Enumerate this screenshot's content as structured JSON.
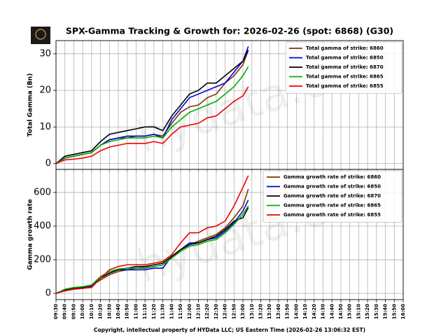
{
  "chart_data": [
    {
      "type": "line",
      "title": "SPX-Gamma Tracking & Growth for: 2026-02-26 (spot: 6868) (G30)",
      "title_color": "#0000cc",
      "ylabel": "Total Gamma (Bn)",
      "watermark": "hydata.co",
      "x": [
        "09:30",
        "09:40",
        "09:50",
        "10:00",
        "10:10",
        "10:20",
        "10:30",
        "10:40",
        "10:50",
        "11:00",
        "11:10",
        "11:20",
        "11:30",
        "11:40",
        "11:50",
        "12:00",
        "12:10",
        "12:20",
        "12:30",
        "12:40",
        "12:50",
        "13:00",
        "13:06"
      ],
      "xlim": [
        "09:30",
        "16:00"
      ],
      "ylim": [
        -1.6,
        33.6
      ],
      "yticks": [
        0,
        10,
        20,
        30
      ],
      "grid": true,
      "legend": "upper right",
      "series": [
        {
          "name": "Total gamma of strike: 6860",
          "color": "#7f3300",
          "values": [
            0,
            1.5,
            2,
            2.5,
            3,
            5,
            6.5,
            7,
            7,
            7.5,
            7.5,
            8,
            7.5,
            11,
            14,
            15.5,
            16,
            18,
            19,
            22,
            24,
            27,
            31
          ]
        },
        {
          "name": "Total gamma of strike: 6850",
          "color": "#0000dd",
          "values": [
            0,
            1.5,
            2,
            2.5,
            3,
            5,
            6.5,
            7,
            7.5,
            7.5,
            7.5,
            8,
            7,
            12,
            15,
            18,
            19,
            20,
            21,
            22,
            25,
            28,
            32
          ]
        },
        {
          "name": "Total gamma of strike: 6870",
          "color": "#000000",
          "values": [
            0,
            2,
            2.5,
            3,
            3.5,
            6,
            8,
            8.5,
            9,
            9.5,
            10,
            10,
            9,
            13,
            16,
            19,
            20,
            22,
            22,
            24,
            26,
            28,
            31
          ]
        },
        {
          "name": "Total gamma of strike: 6865",
          "color": "#00b000",
          "values": [
            0,
            1.5,
            2,
            2.5,
            3,
            5,
            6,
            6.5,
            7,
            7,
            7,
            7.5,
            7,
            10,
            12,
            14,
            15,
            16,
            17,
            19,
            21,
            24,
            26.5
          ]
        },
        {
          "name": "Total gamma of strike: 6855",
          "color": "#ee0000",
          "values": [
            0,
            1,
            1.2,
            1.5,
            2,
            3.5,
            4.5,
            5,
            5.5,
            5.5,
            5.5,
            6,
            5.5,
            8,
            10,
            10.5,
            11,
            12.5,
            13,
            15,
            17,
            18.5,
            21
          ]
        }
      ]
    },
    {
      "type": "line",
      "ylabel": "Gamma growth rate",
      "watermark": "hydata.co",
      "xlabel": "Copyright, intellectual property of HYData LLC; US Eastern Time (2026-02-26 13:06:32 EST)",
      "x": [
        "09:30",
        "09:40",
        "09:50",
        "10:00",
        "10:10",
        "10:20",
        "10:30",
        "10:40",
        "10:50",
        "11:00",
        "11:10",
        "11:20",
        "11:30",
        "11:40",
        "11:50",
        "12:00",
        "12:10",
        "12:20",
        "12:30",
        "12:40",
        "12:50",
        "13:00",
        "13:06"
      ],
      "xlim": [
        "09:30",
        "16:00"
      ],
      "xticks": [
        "09:30",
        "09:40",
        "09:50",
        "10:00",
        "10:10",
        "10:20",
        "10:30",
        "10:40",
        "10:50",
        "11:00",
        "11:10",
        "11:20",
        "11:30",
        "11:40",
        "11:50",
        "12:00",
        "12:10",
        "12:20",
        "12:30",
        "12:40",
        "12:50",
        "13:00",
        "13:10",
        "13:20",
        "13:30",
        "13:40",
        "13:50",
        "14:00",
        "14:10",
        "14:20",
        "14:30",
        "14:40",
        "14:50",
        "15:00",
        "15:10",
        "15:20",
        "15:30",
        "15:40",
        "15:50",
        "16:00"
      ],
      "ylim": [
        -37,
        737
      ],
      "yticks": [
        0,
        200,
        400,
        600
      ],
      "grid": true,
      "legend": "upper right",
      "series": [
        {
          "name": "Gamma growth rate of strike: 6860",
          "color": "#7f3300",
          "values": [
            0,
            20,
            30,
            35,
            45,
            80,
            110,
            130,
            140,
            150,
            150,
            160,
            170,
            210,
            260,
            290,
            310,
            330,
            350,
            390,
            450,
            520,
            620
          ]
        },
        {
          "name": "Gamma growth rate of strike: 6850",
          "color": "#0000dd",
          "values": [
            0,
            15,
            25,
            30,
            40,
            90,
            120,
            140,
            140,
            140,
            140,
            150,
            150,
            220,
            260,
            300,
            300,
            320,
            330,
            370,
            420,
            490,
            555
          ]
        },
        {
          "name": "Gamma growth rate of strike: 6870",
          "color": "#000000",
          "values": [
            0,
            20,
            30,
            35,
            50,
            90,
            120,
            140,
            150,
            160,
            160,
            170,
            180,
            220,
            260,
            290,
            300,
            320,
            340,
            380,
            430,
            450,
            510
          ]
        },
        {
          "name": "Gamma growth rate of strike: 6865",
          "color": "#00b000",
          "values": [
            0,
            25,
            35,
            40,
            50,
            100,
            130,
            145,
            150,
            150,
            155,
            160,
            170,
            210,
            250,
            280,
            290,
            310,
            320,
            360,
            410,
            470,
            520
          ]
        },
        {
          "name": "Gamma growth rate of strike: 6855",
          "color": "#ee0000",
          "values": [
            0,
            15,
            25,
            30,
            35,
            90,
            140,
            160,
            170,
            170,
            170,
            180,
            190,
            230,
            300,
            360,
            360,
            390,
            400,
            430,
            520,
            630,
            700
          ]
        }
      ]
    }
  ]
}
